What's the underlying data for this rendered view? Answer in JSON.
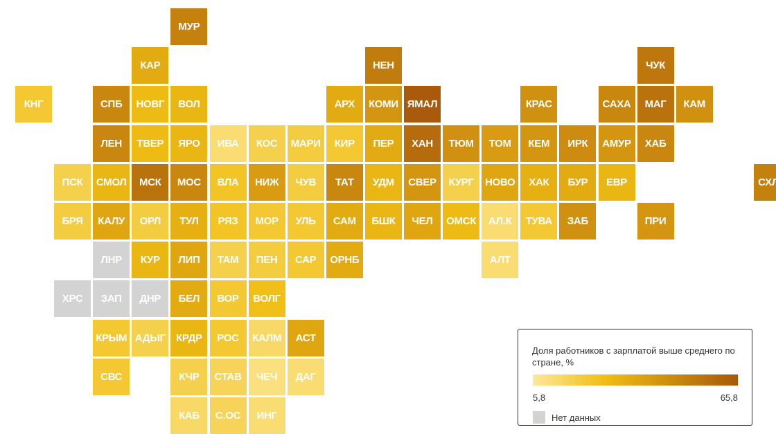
{
  "chart_data": {
    "type": "heatmap",
    "legend": {
      "title": "Доля работников с зарплатой выше среднего по стране, %",
      "min_label": "5,8",
      "max_label": "65,8",
      "min": 5.8,
      "max": 65.8,
      "color_low": "#fde89a",
      "color_high": "#a8580a",
      "nodata_color": "#d3d3d3",
      "nodata_label": "Нет данных"
    },
    "regions": [
      {
        "label": "МУР",
        "row": 0,
        "col": 4,
        "value": 50
      },
      {
        "label": "КАР",
        "row": 1,
        "col": 3,
        "value": 34
      },
      {
        "label": "НЕН",
        "row": 1,
        "col": 9,
        "value": 52
      },
      {
        "label": "ЧУК",
        "row": 1,
        "col": 16,
        "value": 54
      },
      {
        "label": "КНГ",
        "row": 2,
        "col": 0,
        "value": 22
      },
      {
        "label": "СПБ",
        "row": 2,
        "col": 2,
        "value": 48
      },
      {
        "label": "НОВГ",
        "row": 2,
        "col": 3,
        "value": 28
      },
      {
        "label": "ВОЛ",
        "row": 2,
        "col": 4,
        "value": 30
      },
      {
        "label": "АРХ",
        "row": 2,
        "col": 8,
        "value": 34
      },
      {
        "label": "КОМИ",
        "row": 2,
        "col": 9,
        "value": 42
      },
      {
        "label": "ЯМАЛ",
        "row": 2,
        "col": 10,
        "value": 65
      },
      {
        "label": "КРАС",
        "row": 2,
        "col": 13,
        "value": 44
      },
      {
        "label": "САХА",
        "row": 2,
        "col": 15,
        "value": 48
      },
      {
        "label": "МАГ",
        "row": 2,
        "col": 16,
        "value": 56
      },
      {
        "label": "КАМ",
        "row": 2,
        "col": 17,
        "value": 44
      },
      {
        "label": "ЛЕН",
        "row": 3,
        "col": 2,
        "value": 48
      },
      {
        "label": "ТВЕР",
        "row": 3,
        "col": 3,
        "value": 28
      },
      {
        "label": "ЯРО",
        "row": 3,
        "col": 4,
        "value": 30
      },
      {
        "label": "ИВА",
        "row": 3,
        "col": 5,
        "value": 12
      },
      {
        "label": "КОС",
        "row": 3,
        "col": 6,
        "value": 18
      },
      {
        "label": "МАРИ",
        "row": 3,
        "col": 7,
        "value": 20
      },
      {
        "label": "КИР",
        "row": 3,
        "col": 8,
        "value": 22
      },
      {
        "label": "ПЕР",
        "row": 3,
        "col": 9,
        "value": 34
      },
      {
        "label": "ХАН",
        "row": 3,
        "col": 10,
        "value": 58
      },
      {
        "label": "ТЮМ",
        "row": 3,
        "col": 11,
        "value": 44
      },
      {
        "label": "ТОМ",
        "row": 3,
        "col": 12,
        "value": 40
      },
      {
        "label": "КЕМ",
        "row": 3,
        "col": 13,
        "value": 42
      },
      {
        "label": "ИРК",
        "row": 3,
        "col": 14,
        "value": 46
      },
      {
        "label": "АМУР",
        "row": 3,
        "col": 15,
        "value": 42
      },
      {
        "label": "ХАБ",
        "row": 3,
        "col": 16,
        "value": 48
      },
      {
        "label": "ПСК",
        "row": 4,
        "col": 1,
        "value": 18
      },
      {
        "label": "СМОЛ",
        "row": 4,
        "col": 2,
        "value": 30
      },
      {
        "label": "МСК",
        "row": 4,
        "col": 3,
        "value": 56
      },
      {
        "label": "МОС",
        "row": 4,
        "col": 4,
        "value": 48
      },
      {
        "label": "ВЛА",
        "row": 4,
        "col": 5,
        "value": 24
      },
      {
        "label": "НИЖ",
        "row": 4,
        "col": 6,
        "value": 40
      },
      {
        "label": "ЧУВ",
        "row": 4,
        "col": 7,
        "value": 20
      },
      {
        "label": "ТАТ",
        "row": 4,
        "col": 8,
        "value": 48
      },
      {
        "label": "УДМ",
        "row": 4,
        "col": 9,
        "value": 30
      },
      {
        "label": "СВЕР",
        "row": 4,
        "col": 10,
        "value": 42
      },
      {
        "label": "КУРГ",
        "row": 4,
        "col": 11,
        "value": 18
      },
      {
        "label": "НОВО",
        "row": 4,
        "col": 12,
        "value": 36
      },
      {
        "label": "ХАК",
        "row": 4,
        "col": 13,
        "value": 32
      },
      {
        "label": "БУР",
        "row": 4,
        "col": 14,
        "value": 34
      },
      {
        "label": "ЕВР",
        "row": 4,
        "col": 15,
        "value": 30
      },
      {
        "label": "СХЛН",
        "row": 4,
        "col": 19,
        "value": 50
      },
      {
        "label": "БРЯ",
        "row": 5,
        "col": 1,
        "value": 20
      },
      {
        "label": "КАЛУ",
        "row": 5,
        "col": 2,
        "value": 36
      },
      {
        "label": "ОРЛ",
        "row": 5,
        "col": 3,
        "value": 20
      },
      {
        "label": "ТУЛ",
        "row": 5,
        "col": 4,
        "value": 32
      },
      {
        "label": "РЯЗ",
        "row": 5,
        "col": 5,
        "value": 24
      },
      {
        "label": "МОР",
        "row": 5,
        "col": 6,
        "value": 22
      },
      {
        "label": "УЛЬ",
        "row": 5,
        "col": 7,
        "value": 22
      },
      {
        "label": "САМ",
        "row": 5,
        "col": 8,
        "value": 34
      },
      {
        "label": "БШК",
        "row": 5,
        "col": 9,
        "value": 30
      },
      {
        "label": "ЧЕЛ",
        "row": 5,
        "col": 10,
        "value": 36
      },
      {
        "label": "ОМСК",
        "row": 5,
        "col": 11,
        "value": 28
      },
      {
        "label": "АЛ.К",
        "row": 5,
        "col": 12,
        "value": 12
      },
      {
        "label": "ТУВА",
        "row": 5,
        "col": 13,
        "value": 22
      },
      {
        "label": "ЗАБ",
        "row": 5,
        "col": 14,
        "value": 44
      },
      {
        "label": "ПРИ",
        "row": 5,
        "col": 16,
        "value": 42
      },
      {
        "label": "ЛНР",
        "row": 6,
        "col": 2,
        "value": null
      },
      {
        "label": "КУР",
        "row": 6,
        "col": 3,
        "value": 30
      },
      {
        "label": "ЛИП",
        "row": 6,
        "col": 4,
        "value": 36
      },
      {
        "label": "ТАМ",
        "row": 6,
        "col": 5,
        "value": 18
      },
      {
        "label": "ПЕН",
        "row": 6,
        "col": 6,
        "value": 20
      },
      {
        "label": "САР",
        "row": 6,
        "col": 7,
        "value": 22
      },
      {
        "label": "ОРНБ",
        "row": 6,
        "col": 8,
        "value": 34
      },
      {
        "label": "АЛТ",
        "row": 6,
        "col": 12,
        "value": 12
      },
      {
        "label": "ХРС",
        "row": 7,
        "col": 1,
        "value": null
      },
      {
        "label": "ЗАП",
        "row": 7,
        "col": 2,
        "value": null
      },
      {
        "label": "ДНР",
        "row": 7,
        "col": 3,
        "value": null
      },
      {
        "label": "БЕЛ",
        "row": 7,
        "col": 4,
        "value": 34
      },
      {
        "label": "ВОР",
        "row": 7,
        "col": 5,
        "value": 22
      },
      {
        "label": "ВОЛГ",
        "row": 7,
        "col": 6,
        "value": 26
      },
      {
        "label": "КРЫМ",
        "row": 8,
        "col": 2,
        "value": 22
      },
      {
        "label": "АДЫГ",
        "row": 8,
        "col": 3,
        "value": 18
      },
      {
        "label": "КРДР",
        "row": 8,
        "col": 4,
        "value": 30
      },
      {
        "label": "РОС",
        "row": 8,
        "col": 5,
        "value": 22
      },
      {
        "label": "КАЛМ",
        "row": 8,
        "col": 6,
        "value": 14
      },
      {
        "label": "АСТ",
        "row": 8,
        "col": 7,
        "value": 36
      },
      {
        "label": "СВС",
        "row": 9,
        "col": 2,
        "value": 22
      },
      {
        "label": "КЧР",
        "row": 9,
        "col": 4,
        "value": 18
      },
      {
        "label": "СТАВ",
        "row": 9,
        "col": 5,
        "value": 16
      },
      {
        "label": "ЧЕЧ",
        "row": 9,
        "col": 6,
        "value": 10
      },
      {
        "label": "ДАГ",
        "row": 9,
        "col": 7,
        "value": 12
      },
      {
        "label": "КАБ",
        "row": 10,
        "col": 4,
        "value": 14
      },
      {
        "label": "С.ОС",
        "row": 10,
        "col": 5,
        "value": 16
      },
      {
        "label": "ИНГ",
        "row": 10,
        "col": 6,
        "value": 12
      }
    ]
  }
}
